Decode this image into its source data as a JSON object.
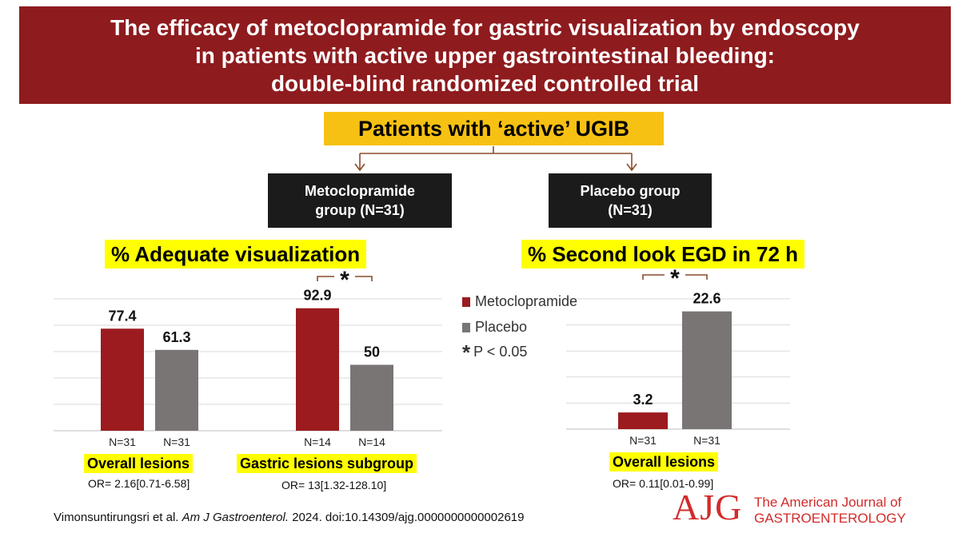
{
  "title_lines": [
    "The efficacy of metoclopramide for gastric visualization by endoscopy",
    "in patients with active upper gastrointestinal bleeding:",
    "double-blind randomized controlled trial"
  ],
  "patients_label": "Patients with ‘active’ UGIB",
  "groups": [
    {
      "line1": "Metoclopramide",
      "line2": "group (N=31)"
    },
    {
      "line1": "Placebo group",
      "line2": "(N=31)"
    }
  ],
  "sections": {
    "left_title": "% Adequate visualization",
    "right_title": "% Second look EGD in 72 h"
  },
  "legend": {
    "metoclopramide": "Metoclopramide",
    "placebo": "Placebo",
    "star": "*",
    "p_value": "P < 0.05"
  },
  "subgroups": {
    "overall": "Overall lesions",
    "gastric": "Gastric lesions subgroup",
    "overall_right": "Overall lesions"
  },
  "odds_ratios": {
    "overall": "OR= 2.16[0.71-6.58]",
    "gastric": "OR= 13[1.32-128.10]",
    "egd": "OR= 0.11[0.01-0.99]"
  },
  "citation": {
    "authors": "Vimonsuntirungsri et al. ",
    "journal": "Am J Gastroenterol.",
    "rest": " 2024. doi:10.14309/ajg.0000000000002619"
  },
  "logo": {
    "mark": "AJG",
    "name_line1": "The American Journal of",
    "name_line2": "GASTROENTEROLOGY"
  },
  "colors": {
    "metoclopramide": "#9b1b1f",
    "placebo": "#7a7575",
    "banner": "#8e1b1e",
    "highlight": "#ffff00",
    "arrow": "#8a4b2a"
  },
  "chart_data": [
    {
      "type": "bar",
      "title": "% Adequate visualization",
      "categories": [
        "Overall lesions",
        "Gastric lesions subgroup"
      ],
      "series": [
        {
          "name": "Metoclopramide",
          "values": [
            77.4,
            92.9
          ],
          "n_labels": [
            "N=31",
            "N=14"
          ]
        },
        {
          "name": "Placebo",
          "values": [
            61.3,
            50
          ],
          "n_labels": [
            "N=31",
            "N=14"
          ]
        }
      ],
      "significance": [
        false,
        true
      ],
      "ylim": [
        0,
        100
      ],
      "grid": true
    },
    {
      "type": "bar",
      "title": "% Second look EGD in 72 h",
      "categories": [
        "Overall lesions"
      ],
      "series": [
        {
          "name": "Metoclopramide",
          "values": [
            3.2
          ],
          "n_labels": [
            "N=31"
          ]
        },
        {
          "name": "Placebo",
          "values": [
            22.6
          ],
          "n_labels": [
            "N=31"
          ]
        }
      ],
      "significance": [
        true
      ],
      "ylim": [
        0,
        25
      ],
      "grid": true
    }
  ]
}
